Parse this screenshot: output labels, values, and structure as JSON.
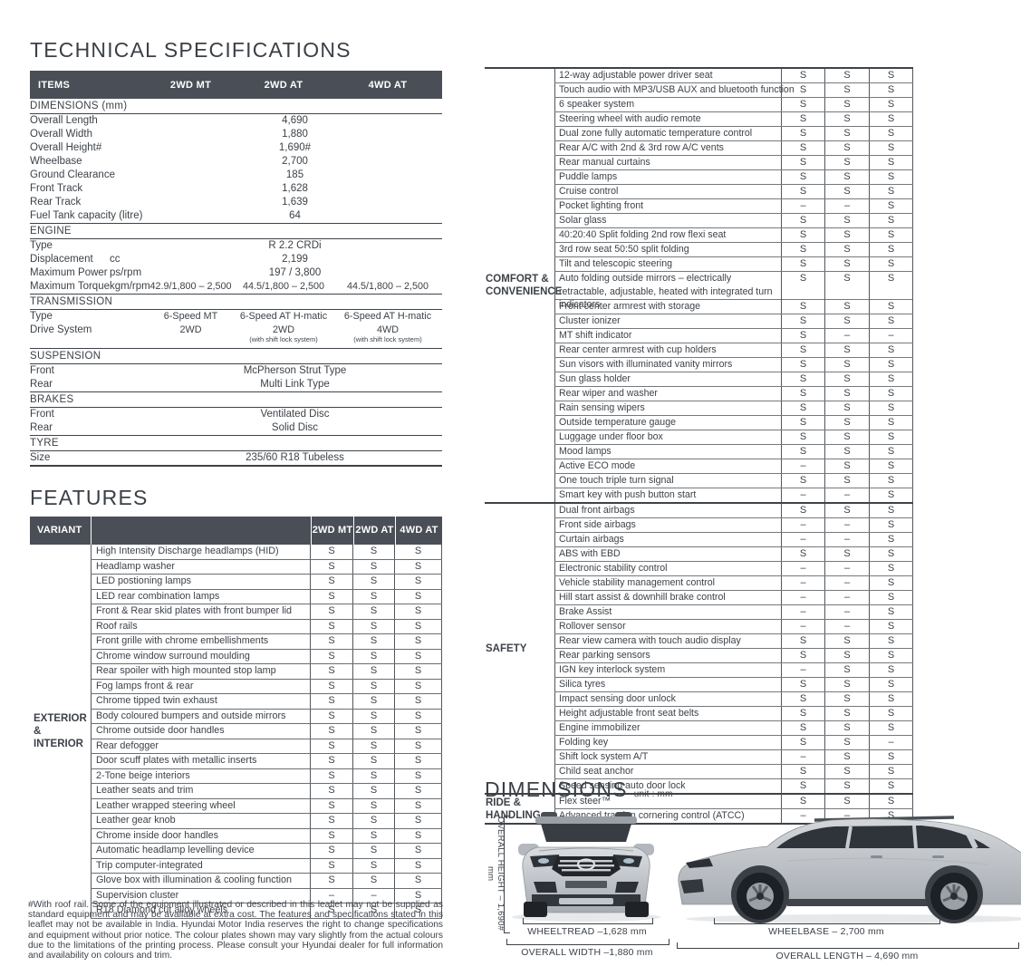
{
  "colors": {
    "header_bg": "#4a4f57",
    "text": "#3d4248",
    "border_dark": "#3e434a"
  },
  "tech_specs": {
    "title": "TECHNICAL SPECIFICATIONS",
    "columns": [
      "ITEMS",
      "2WD MT",
      "2WD AT",
      "4WD AT"
    ],
    "sections": [
      {
        "name": "DIMENSIONS (mm)",
        "rows": [
          {
            "item": "Overall Length",
            "values": [
              "4,690"
            ]
          },
          {
            "item": "Overall Width",
            "values": [
              "1,880"
            ]
          },
          {
            "item": "Overall Height#",
            "values": [
              "1,690#"
            ]
          },
          {
            "item": "Wheelbase",
            "values": [
              "2,700"
            ]
          },
          {
            "item": "Ground Clearance",
            "values": [
              "185"
            ]
          },
          {
            "item": "Front Track",
            "values": [
              "1,628"
            ]
          },
          {
            "item": "Rear Track",
            "values": [
              "1,639"
            ]
          },
          {
            "item": "Fuel Tank capacity (litre)",
            "values": [
              "64"
            ]
          }
        ]
      },
      {
        "name": "ENGINE",
        "rows": [
          {
            "item": "Type",
            "values": [
              "R 2.2 CRDi"
            ]
          },
          {
            "item": "Displacement",
            "unit": "cc",
            "values": [
              "2,199"
            ]
          },
          {
            "item": "Maximum Power",
            "unit": "ps/rpm",
            "values": [
              "197 / 3,800"
            ]
          },
          {
            "item": "Maximum Torque",
            "unit": "kgm/rpm",
            "values": [
              "42.9/1,800 – 2,500",
              "44.5/1,800 – 2,500",
              "44.5/1,800 – 2,500"
            ]
          }
        ]
      },
      {
        "name": "TRANSMISSION",
        "rows": [
          {
            "item": "Type",
            "values": [
              "6-Speed MT",
              "6-Speed AT H-matic",
              "6-Speed AT H-matic"
            ]
          },
          {
            "item": "Drive System",
            "values": [
              "2WD",
              "2WD",
              "4WD"
            ],
            "notes": [
              "",
              "(with shift lock system)",
              "(with shift lock system)"
            ]
          }
        ]
      },
      {
        "name": "SUSPENSION",
        "rows": [
          {
            "item": "Front",
            "values": [
              "McPherson Strut Type"
            ]
          },
          {
            "item": "Rear",
            "values": [
              "Multi Link Type"
            ]
          }
        ]
      },
      {
        "name": "BRAKES",
        "rows": [
          {
            "item": "Front",
            "values": [
              "Ventilated Disc"
            ]
          },
          {
            "item": "Rear",
            "values": [
              "Solid Disc"
            ]
          }
        ]
      },
      {
        "name": "TYRE",
        "rows": [
          {
            "item": "Size",
            "values": [
              "235/60 R18 Tubeless"
            ]
          }
        ]
      }
    ]
  },
  "features": {
    "title": "FEATURES",
    "header": {
      "variant": "VARIANT",
      "cols": [
        "2WD MT",
        "2WD AT",
        "4WD AT"
      ]
    },
    "group_lines": [
      "EXTERIOR",
      "& INTERIOR"
    ],
    "rows": [
      {
        "label": "High Intensity Discharge headlamps (HID)",
        "v": [
          "S",
          "S",
          "S"
        ]
      },
      {
        "label": "Headlamp washer",
        "v": [
          "S",
          "S",
          "S"
        ]
      },
      {
        "label": "LED postioning lamps",
        "v": [
          "S",
          "S",
          "S"
        ]
      },
      {
        "label": "LED rear combination lamps",
        "v": [
          "S",
          "S",
          "S"
        ]
      },
      {
        "label": "Front & Rear skid plates with front bumper lid",
        "v": [
          "S",
          "S",
          "S"
        ]
      },
      {
        "label": "Roof rails",
        "v": [
          "S",
          "S",
          "S"
        ]
      },
      {
        "label": "Front grille with chrome embellishments",
        "v": [
          "S",
          "S",
          "S"
        ]
      },
      {
        "label": "Chrome window surround moulding",
        "v": [
          "S",
          "S",
          "S"
        ]
      },
      {
        "label": "Rear spoiler with high mounted stop lamp",
        "v": [
          "S",
          "S",
          "S"
        ]
      },
      {
        "label": "Fog lamps front & rear",
        "v": [
          "S",
          "S",
          "S"
        ]
      },
      {
        "label": "Chrome tipped twin exhaust",
        "v": [
          "S",
          "S",
          "S"
        ]
      },
      {
        "label": "Body coloured bumpers and outside mirrors",
        "v": [
          "S",
          "S",
          "S"
        ]
      },
      {
        "label": "Chrome outside door handles",
        "v": [
          "S",
          "S",
          "S"
        ]
      },
      {
        "label": "Rear defogger",
        "v": [
          "S",
          "S",
          "S"
        ]
      },
      {
        "label": "Door scuff plates with metallic inserts",
        "v": [
          "S",
          "S",
          "S"
        ]
      },
      {
        "label": "2-Tone beige interiors",
        "v": [
          "S",
          "S",
          "S"
        ]
      },
      {
        "label": "Leather seats and trim",
        "v": [
          "S",
          "S",
          "S"
        ]
      },
      {
        "label": "Leather wrapped steering wheel",
        "v": [
          "S",
          "S",
          "S"
        ]
      },
      {
        "label": "Leather gear knob",
        "v": [
          "S",
          "S",
          "S"
        ]
      },
      {
        "label": "Chrome inside door handles",
        "v": [
          "S",
          "S",
          "S"
        ]
      },
      {
        "label": "Automatic headlamp levelling device",
        "v": [
          "S",
          "S",
          "S"
        ]
      },
      {
        "label": "Trip computer-integrated",
        "v": [
          "S",
          "S",
          "S"
        ]
      },
      {
        "label": "Glove box with illumination & cooling function",
        "v": [
          "S",
          "S",
          "S"
        ]
      },
      {
        "label": "Supervision cluster",
        "v": [
          "–",
          "–",
          "S"
        ]
      },
      {
        "label": "R18 Diamond cut alloy wheels",
        "v": [
          "S",
          "S",
          "S"
        ]
      }
    ]
  },
  "features2": {
    "sections": [
      {
        "label_lines": [
          "COMFORT &",
          "CONVENIENCE"
        ],
        "rows": [
          {
            "label": "12-way adjustable power driver seat",
            "v": [
              "S",
              "S",
              "S"
            ]
          },
          {
            "label": "Touch audio with MP3/USB AUX and bluetooth function",
            "v": [
              "S",
              "S",
              "S"
            ]
          },
          {
            "label": "6 speaker system",
            "v": [
              "S",
              "S",
              "S"
            ]
          },
          {
            "label": "Steering wheel with audio remote",
            "v": [
              "S",
              "S",
              "S"
            ]
          },
          {
            "label": "Dual zone fully automatic temperature control",
            "v": [
              "S",
              "S",
              "S"
            ]
          },
          {
            "label": "Rear A/C with 2nd & 3rd row A/C vents",
            "v": [
              "S",
              "S",
              "S"
            ]
          },
          {
            "label": "Rear manual curtains",
            "v": [
              "S",
              "S",
              "S"
            ]
          },
          {
            "label": "Puddle lamps",
            "v": [
              "S",
              "S",
              "S"
            ]
          },
          {
            "label": "Cruise control",
            "v": [
              "S",
              "S",
              "S"
            ]
          },
          {
            "label": "Pocket lighting front",
            "v": [
              "–",
              "–",
              "S"
            ]
          },
          {
            "label": "Solar glass",
            "v": [
              "S",
              "S",
              "S"
            ]
          },
          {
            "label": "40:20:40 Split folding 2nd row flexi seat",
            "v": [
              "S",
              "S",
              "S"
            ]
          },
          {
            "label": "3rd row seat 50:50 split folding",
            "v": [
              "S",
              "S",
              "S"
            ]
          },
          {
            "label": "Tilt and telescopic steering",
            "v": [
              "S",
              "S",
              "S"
            ]
          },
          {
            "label": "Auto folding outside mirrors – electrically retractable, adjustable, heated with integrated turn indicators",
            "v": [
              "S",
              "S",
              "S"
            ],
            "tall": true
          },
          {
            "label": "Front center armrest with storage",
            "v": [
              "S",
              "S",
              "S"
            ]
          },
          {
            "label": "Cluster ionizer",
            "v": [
              "S",
              "S",
              "S"
            ]
          },
          {
            "label": "MT shift indicator",
            "v": [
              "S",
              "–",
              "–"
            ]
          },
          {
            "label": "Rear center armrest with cup holders",
            "v": [
              "S",
              "S",
              "S"
            ]
          },
          {
            "label": "Sun visors with illuminated vanity mirrors",
            "v": [
              "S",
              "S",
              "S"
            ]
          },
          {
            "label": "Sun glass holder",
            "v": [
              "S",
              "S",
              "S"
            ]
          },
          {
            "label": "Rear wiper and washer",
            "v": [
              "S",
              "S",
              "S"
            ]
          },
          {
            "label": "Rain sensing wipers",
            "v": [
              "S",
              "S",
              "S"
            ]
          },
          {
            "label": "Outside temperature gauge",
            "v": [
              "S",
              "S",
              "S"
            ]
          },
          {
            "label": "Luggage under floor box",
            "v": [
              "S",
              "S",
              "S"
            ]
          },
          {
            "label": "Mood lamps",
            "v": [
              "S",
              "S",
              "S"
            ]
          },
          {
            "label": "Active ECO mode",
            "v": [
              "–",
              "S",
              "S"
            ]
          },
          {
            "label": "One touch triple turn signal",
            "v": [
              "S",
              "S",
              "S"
            ]
          },
          {
            "label": "Smart key with push button start",
            "v": [
              "–",
              "–",
              "S"
            ]
          }
        ]
      },
      {
        "label_lines": [
          "SAFETY"
        ],
        "rows": [
          {
            "label": "Dual front airbags",
            "v": [
              "S",
              "S",
              "S"
            ]
          },
          {
            "label": "Front side airbags",
            "v": [
              "–",
              "–",
              "S"
            ]
          },
          {
            "label": "Curtain airbags",
            "v": [
              "–",
              "–",
              "S"
            ]
          },
          {
            "label": "ABS with EBD",
            "v": [
              "S",
              "S",
              "S"
            ]
          },
          {
            "label": "Electronic stability control",
            "v": [
              "–",
              "–",
              "S"
            ]
          },
          {
            "label": "Vehicle stability management control",
            "v": [
              "–",
              "–",
              "S"
            ]
          },
          {
            "label": "Hill start assist & downhill brake control",
            "v": [
              "–",
              "–",
              "S"
            ]
          },
          {
            "label": "Brake Assist",
            "v": [
              "–",
              "–",
              "S"
            ]
          },
          {
            "label": "Rollover sensor",
            "v": [
              "–",
              "–",
              "S"
            ]
          },
          {
            "label": "Rear view camera with touch audio display",
            "v": [
              "S",
              "S",
              "S"
            ]
          },
          {
            "label": "Rear parking sensors",
            "v": [
              "S",
              "S",
              "S"
            ]
          },
          {
            "label": "IGN key interlock system",
            "v": [
              "–",
              "S",
              "S"
            ]
          },
          {
            "label": "Silica tyres",
            "v": [
              "S",
              "S",
              "S"
            ]
          },
          {
            "label": "Impact sensing door unlock",
            "v": [
              "S",
              "S",
              "S"
            ]
          },
          {
            "label": "Height adjustable front seat belts",
            "v": [
              "S",
              "S",
              "S"
            ]
          },
          {
            "label": "Engine immobilizer",
            "v": [
              "S",
              "S",
              "S"
            ]
          },
          {
            "label": "Folding key",
            "v": [
              "S",
              "S",
              "–"
            ]
          },
          {
            "label": "Shift lock system A/T",
            "v": [
              "–",
              "S",
              "S"
            ]
          },
          {
            "label": "Child seat anchor",
            "v": [
              "S",
              "S",
              "S"
            ]
          },
          {
            "label": "Speed sensing auto door lock",
            "v": [
              "S",
              "S",
              "S"
            ]
          }
        ]
      },
      {
        "label_lines": [
          "RIDE &",
          "HANDLING"
        ],
        "rows": [
          {
            "label": "Flex steer™",
            "v": [
              "S",
              "S",
              "S"
            ]
          },
          {
            "label": "Advanced traction cornering control (ATCC)",
            "v": [
              "–",
              "–",
              "S"
            ]
          }
        ]
      }
    ]
  },
  "footnote": "#With roof rail. Some of the equipment illustrated or described in this leaflet may not be supplied as standard equipment and may be available at extra cost. The features and specifications stated in this leaflet may not be available in India. Hyundai Motor India reserves the right to change specifications and equipment without prior notice. The colour plates shown may vary slightly from the actual colours due to the limitations of the printing process. Please consult your Hyundai dealer for full information and availability on colours and trim.",
  "dimensions": {
    "title": "DIMENSIONS",
    "unit": "unit : mm",
    "labels": {
      "height": "OVERALL HEIGHT –  1,690# mm",
      "wheeltread": "WHEELTREAD –1,628 mm",
      "width": "OVERALL WIDTH –1,880 mm",
      "wheelbase": "WHEELBASE – 2,700 mm",
      "length": "OVERALL LENGTH – 4,690 mm"
    }
  }
}
